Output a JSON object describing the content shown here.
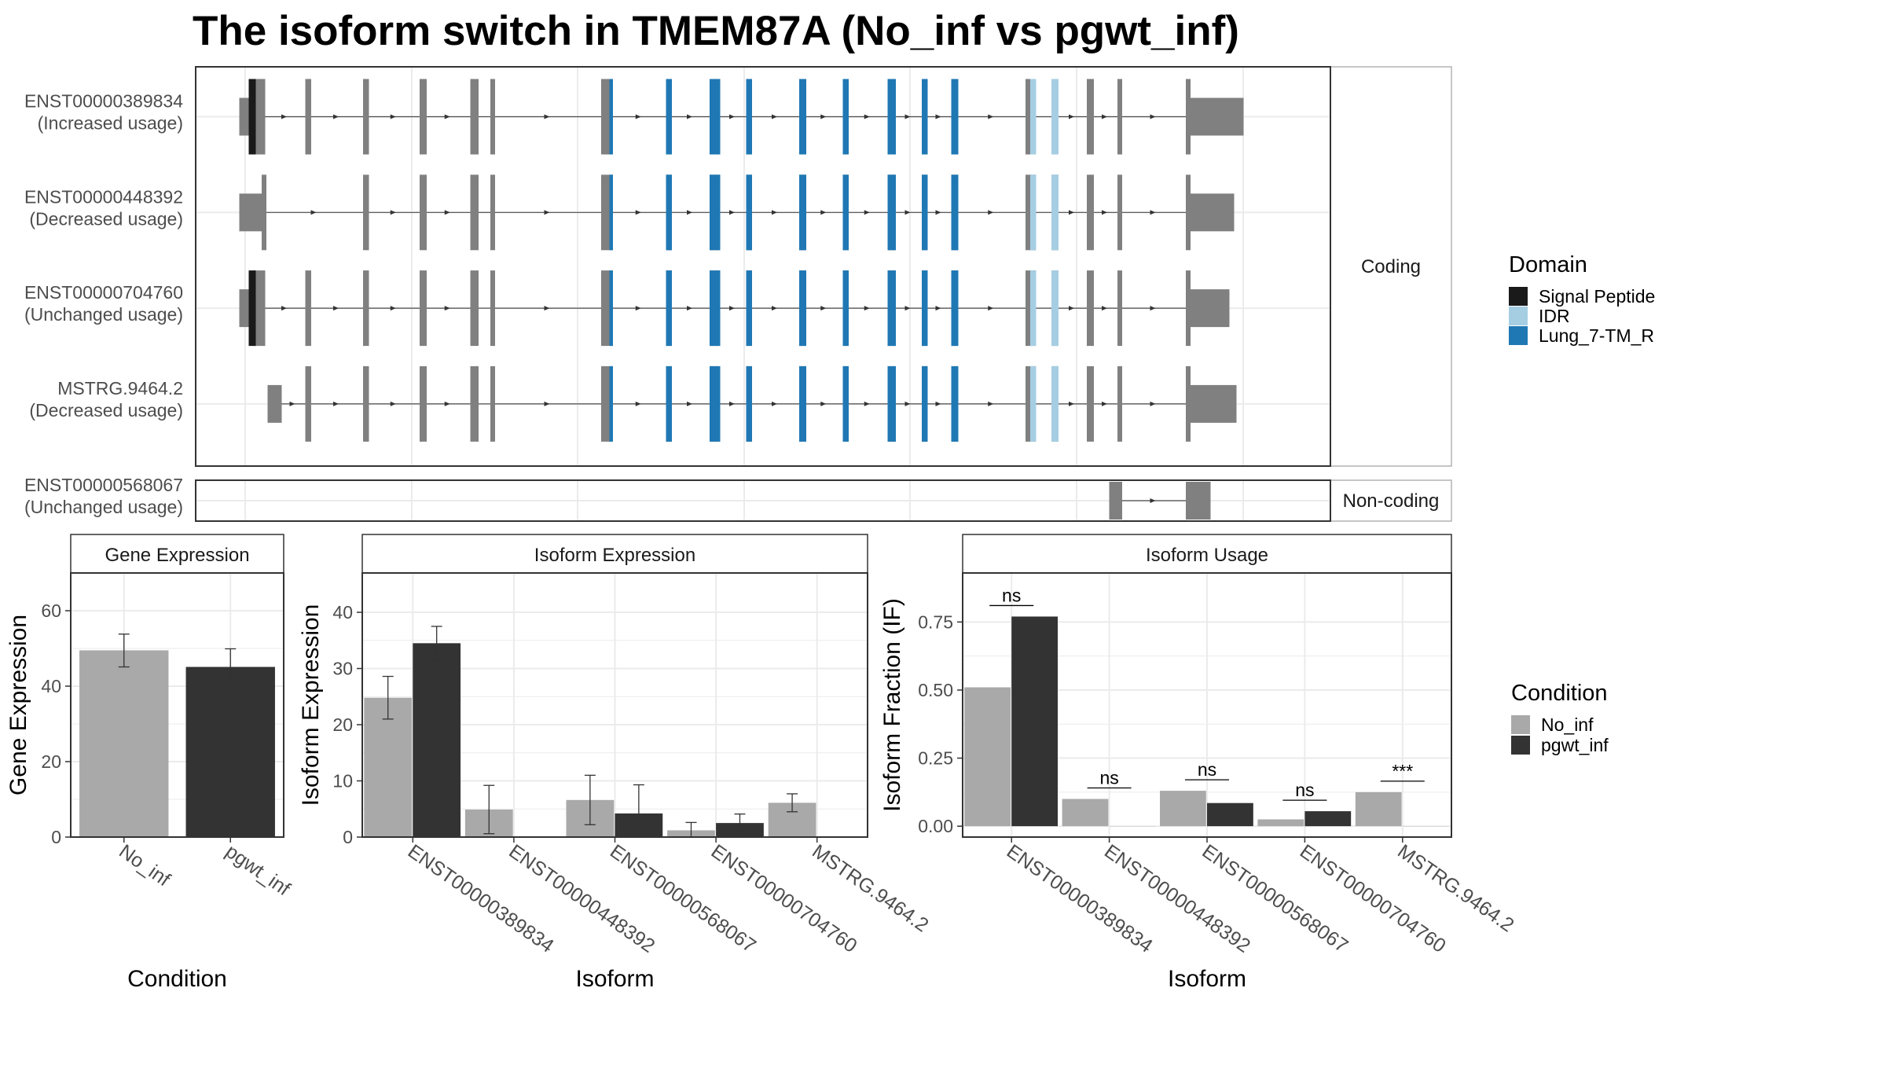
{
  "title": "The isoform switch in TMEM87A (No_inf vs pgwt_inf)",
  "colors": {
    "signal_peptide": "#1a1a1a",
    "idr": "#a6cee3",
    "lung_7tm_r": "#1f78b4",
    "exon": "#808080",
    "no_inf": "#a9a9a9",
    "pgwt_inf": "#333333",
    "grid": "#ebebeb",
    "strip_border": "#b3b3b3"
  },
  "structure": {
    "facets": [
      "Coding",
      "Non-coding"
    ],
    "isoforms": [
      {
        "id": "ENST00000389834",
        "usage": "(Increased usage)",
        "facet": "Coding",
        "exons": [
          [
            203,
            214
          ],
          [
            214,
            217
          ],
          [
            217,
            225
          ],
          [
            259,
            264
          ],
          [
            308,
            313
          ],
          [
            356,
            362
          ],
          [
            399,
            406
          ],
          [
            416,
            420
          ],
          [
            510,
            517
          ],
          [
            517,
            520
          ],
          [
            565,
            570
          ],
          [
            602,
            611
          ],
          [
            633,
            638
          ],
          [
            678,
            684
          ],
          [
            715,
            720
          ],
          [
            753,
            760
          ],
          [
            782,
            787
          ],
          [
            807,
            813
          ],
          [
            870,
            874
          ],
          [
            874,
            879
          ],
          [
            892,
            898
          ],
          [
            922,
            928
          ],
          [
            948,
            952
          ],
          [
            1006,
            1010
          ],
          [
            1010,
            1055
          ]
        ],
        "domains": [
          {
            "name": "Signal Peptide",
            "range": [
              211,
              217
            ]
          },
          {
            "name": "Lung_7-TM_R",
            "range": [
              517,
              813
            ]
          },
          {
            "name": "IDR",
            "range": [
              874,
              879
            ]
          },
          {
            "name": "IDR",
            "range": [
              892,
              898
            ]
          }
        ]
      },
      {
        "id": "ENST00000448392",
        "usage": "(Decreased usage)",
        "facet": "Coding",
        "exons": [
          [
            203,
            222
          ],
          [
            222,
            226
          ],
          [
            308,
            313
          ],
          [
            356,
            362
          ],
          [
            399,
            406
          ],
          [
            416,
            420
          ],
          [
            510,
            517
          ],
          [
            517,
            520
          ],
          [
            565,
            570
          ],
          [
            602,
            611
          ],
          [
            633,
            638
          ],
          [
            678,
            684
          ],
          [
            715,
            720
          ],
          [
            753,
            760
          ],
          [
            782,
            787
          ],
          [
            807,
            813
          ],
          [
            870,
            874
          ],
          [
            874,
            879
          ],
          [
            892,
            898
          ],
          [
            922,
            928
          ],
          [
            948,
            952
          ],
          [
            1006,
            1010
          ],
          [
            1010,
            1047
          ]
        ],
        "domains": [
          {
            "name": "Lung_7-TM_R",
            "range": [
              517,
              813
            ]
          },
          {
            "name": "IDR",
            "range": [
              874,
              879
            ]
          },
          {
            "name": "IDR",
            "range": [
              892,
              898
            ]
          }
        ]
      },
      {
        "id": "ENST00000704760",
        "usage": "(Unchanged usage)",
        "facet": "Coding",
        "exons": [
          [
            203,
            214
          ],
          [
            214,
            217
          ],
          [
            217,
            225
          ],
          [
            259,
            264
          ],
          [
            308,
            313
          ],
          [
            356,
            362
          ],
          [
            399,
            406
          ],
          [
            416,
            420
          ],
          [
            510,
            517
          ],
          [
            517,
            520
          ],
          [
            565,
            570
          ],
          [
            602,
            611
          ],
          [
            633,
            638
          ],
          [
            678,
            684
          ],
          [
            715,
            720
          ],
          [
            753,
            760
          ],
          [
            782,
            787
          ],
          [
            807,
            813
          ],
          [
            870,
            874
          ],
          [
            874,
            879
          ],
          [
            892,
            898
          ],
          [
            922,
            928
          ],
          [
            948,
            952
          ],
          [
            1006,
            1010
          ],
          [
            1010,
            1043
          ]
        ],
        "domains": [
          {
            "name": "Signal Peptide",
            "range": [
              211,
              217
            ]
          },
          {
            "name": "Lung_7-TM_R",
            "range": [
              517,
              813
            ]
          },
          {
            "name": "IDR",
            "range": [
              874,
              879
            ]
          },
          {
            "name": "IDR",
            "range": [
              892,
              898
            ]
          }
        ]
      },
      {
        "id": "MSTRG.9464.2",
        "usage": "(Decreased usage)",
        "facet": "Coding",
        "exons": [
          [
            227,
            239
          ],
          [
            259,
            264
          ],
          [
            308,
            313
          ],
          [
            356,
            362
          ],
          [
            399,
            403
          ],
          [
            403,
            406
          ],
          [
            416,
            420
          ],
          [
            510,
            517
          ],
          [
            517,
            520
          ],
          [
            565,
            570
          ],
          [
            602,
            611
          ],
          [
            633,
            638
          ],
          [
            678,
            684
          ],
          [
            715,
            720
          ],
          [
            753,
            760
          ],
          [
            782,
            787
          ],
          [
            807,
            813
          ],
          [
            870,
            874
          ],
          [
            874,
            879
          ],
          [
            892,
            898
          ],
          [
            922,
            928
          ],
          [
            948,
            952
          ],
          [
            1006,
            1010
          ],
          [
            1010,
            1049
          ]
        ],
        "domains": [
          {
            "name": "Lung_7-TM_R",
            "range": [
              517,
              813
            ]
          },
          {
            "name": "IDR",
            "range": [
              874,
              879
            ]
          },
          {
            "name": "IDR",
            "range": [
              892,
              898
            ]
          }
        ]
      },
      {
        "id": "ENST00000568067",
        "usage": "(Unchanged usage)",
        "facet": "Non-coding",
        "exons": [
          [
            941,
            952
          ],
          [
            1006,
            1027
          ]
        ],
        "domains": []
      }
    ]
  },
  "legend_domain": {
    "title": "Domain",
    "items": [
      "Signal Peptide",
      "IDR",
      "Lung_7-TM_R"
    ]
  },
  "legend_condition": {
    "title": "Condition",
    "items": [
      "No_inf",
      "pgwt_inf"
    ]
  },
  "chart_data": [
    {
      "type": "bar",
      "title": "Gene Expression",
      "xlabel": "Condition",
      "ylabel": "Gene Expression",
      "categories": [
        "No_inf",
        "pgwt_inf"
      ],
      "values": [
        49.5,
        45.1
      ],
      "error_low": [
        45.1,
        40.9
      ],
      "error_high": [
        53.8,
        49.9
      ],
      "ylim": [
        0,
        70
      ],
      "yticks": [
        0,
        20,
        40,
        60
      ],
      "grid": true
    },
    {
      "type": "bar",
      "title": "Isoform Expression",
      "xlabel": "Isoform",
      "ylabel": "Isoform Expression",
      "categories": [
        "ENST00000389834",
        "ENST00000448392",
        "ENST00000568067",
        "ENST00000704760",
        "MSTRG.9464.2"
      ],
      "series": [
        {
          "name": "No_inf",
          "values": [
            24.8,
            4.9,
            6.6,
            1.2,
            6.1
          ],
          "error_low": [
            21.0,
            0.6,
            2.2,
            0,
            4.5
          ],
          "error_high": [
            28.6,
            9.2,
            11.0,
            2.6,
            7.7
          ]
        },
        {
          "name": "pgwt_inf",
          "values": [
            34.5,
            0,
            4.2,
            2.5,
            0
          ],
          "error_low": [
            31.5,
            0,
            0,
            0.9,
            0
          ],
          "error_high": [
            37.5,
            0,
            9.3,
            4.1,
            0
          ]
        }
      ],
      "ylim": [
        0,
        47
      ],
      "yticks": [
        0,
        10,
        20,
        30,
        40
      ],
      "grid": true
    },
    {
      "type": "bar",
      "title": "Isoform Usage",
      "xlabel": "Isoform",
      "ylabel": "Isoform Fraction (IF)",
      "categories": [
        "ENST00000389834",
        "ENST00000448392",
        "ENST00000568067",
        "ENST00000704760",
        "MSTRG.9464.2"
      ],
      "series": [
        {
          "name": "No_inf",
          "values": [
            0.51,
            0.1,
            0.13,
            0.025,
            0.125
          ]
        },
        {
          "name": "pgwt_inf",
          "values": [
            0.77,
            0,
            0.085,
            0.055,
            0
          ]
        }
      ],
      "significance": [
        "ns",
        "ns",
        "ns",
        "ns",
        "***"
      ],
      "ylim": [
        -0.04,
        0.93
      ],
      "yticks": [
        0.0,
        0.25,
        0.5,
        0.75
      ],
      "ytick_labels": [
        "0.00",
        "0.25",
        "0.50",
        "0.75"
      ],
      "grid": true
    }
  ]
}
